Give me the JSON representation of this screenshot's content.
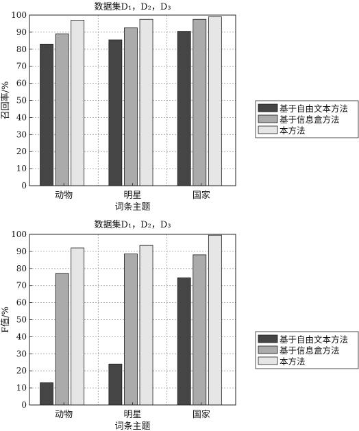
{
  "chart_data": [
    {
      "type": "bar",
      "title": "数据集D₁，D₂，D₃",
      "xlabel": "词条主题",
      "ylabel": "召回率/%",
      "categories": [
        "动物",
        "明星",
        "国家"
      ],
      "ylim": [
        0,
        100
      ],
      "yticks": [
        0,
        10,
        20,
        30,
        40,
        50,
        60,
        70,
        80,
        90,
        100
      ],
      "grid": true,
      "legend_position": "right",
      "series": [
        {
          "name": "基于自由文本方法",
          "color": "#454545",
          "values": [
            83,
            85.5,
            90.5
          ]
        },
        {
          "name": "基于信息盒方法",
          "color": "#ababab",
          "values": [
            89,
            92.5,
            97.5
          ]
        },
        {
          "name": "本方法",
          "color": "#e6e6e6",
          "values": [
            97,
            97.5,
            99
          ]
        }
      ]
    },
    {
      "type": "bar",
      "title": "数据集D₁，D₂，D₃",
      "xlabel": "词条主题",
      "ylabel": "F值/%",
      "categories": [
        "动物",
        "明星",
        "国家"
      ],
      "ylim": [
        0,
        100
      ],
      "yticks": [
        0,
        10,
        20,
        30,
        40,
        50,
        60,
        70,
        80,
        90,
        100
      ],
      "grid": true,
      "legend_position": "right",
      "series": [
        {
          "name": "基于自由文本方法",
          "color": "#454545",
          "values": [
            13,
            24,
            74.5
          ]
        },
        {
          "name": "基于信息盒方法",
          "color": "#ababab",
          "values": [
            77,
            88.5,
            88
          ]
        },
        {
          "name": "本方法",
          "color": "#e6e6e6",
          "values": [
            92,
            93.5,
            99.5
          ]
        }
      ]
    }
  ]
}
